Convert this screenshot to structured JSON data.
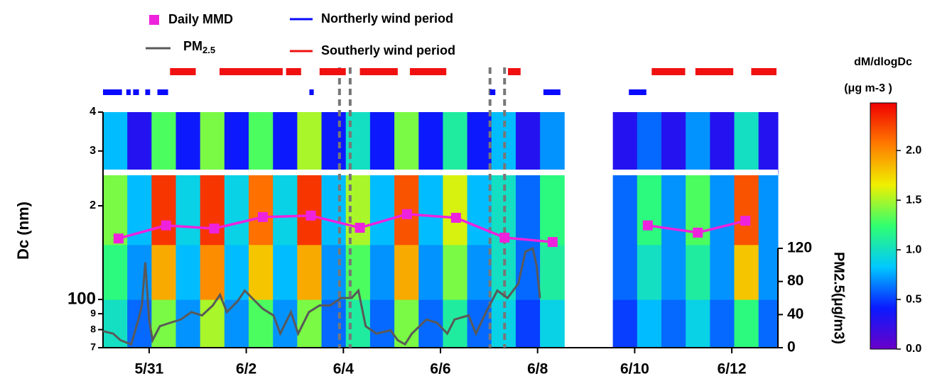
{
  "chart_data": {
    "type": "heatmap",
    "y_label": "Dc (nm)",
    "y2_label": "PM2.5(μg/m3)",
    "colorbar_title": "dM/dlogDc",
    "colorbar_unit": "(μg m-3 )",
    "xlim": [
      0.05,
      13.95
    ],
    "xticks": [
      {
        "value": 1,
        "label": "5/31"
      },
      {
        "value": 3,
        "label": "6/2"
      },
      {
        "value": 5,
        "label": "6/4"
      },
      {
        "value": 7,
        "label": "6/6"
      },
      {
        "value": 9,
        "label": "6/8"
      },
      {
        "value": 11,
        "label": "6/10"
      },
      {
        "value": 13,
        "label": "6/12"
      }
    ],
    "ylim": [
      70,
      400
    ],
    "log_y": true,
    "yticks": [
      {
        "value": 70,
        "label": "7"
      },
      {
        "value": 80,
        "label": "8"
      },
      {
        "value": 90,
        "label": "9"
      },
      100,
      {
        "value": 200,
        "label": "2"
      },
      {
        "value": 300,
        "label": "3"
      },
      {
        "value": 400,
        "label": "4"
      }
    ],
    "y_break": 256,
    "y2lim": [
      0,
      120
    ],
    "y2ticks": [
      0,
      40,
      80,
      120
    ],
    "bins_x": [
      0.05,
      0.55,
      1.05,
      1.55,
      2.05,
      2.55,
      3.05,
      3.55,
      4.05,
      4.55,
      5.05,
      5.55,
      6.05,
      6.55,
      7.05,
      7.55,
      8.05,
      8.55,
      9.05,
      9.55,
      10.05,
      10.55,
      11.05,
      11.55,
      12.05,
      12.55,
      13.05,
      13.55,
      13.95
    ],
    "bins_y": [
      70,
      100,
      150,
      256,
      400
    ],
    "z": [
      [
        1.0,
        0.6,
        1.4,
        0.7,
        1.5,
        0.7,
        1.3,
        0.7,
        1.4,
        0.6,
        1.1,
        0.6,
        1.4,
        0.6,
        1.1,
        0.6,
        0.9,
        0.5,
        0.9,
        null,
        null,
        0.5,
        0.8,
        0.6,
        0.9,
        0.6,
        1.2,
        0.6
      ],
      [
        1.2,
        0.7,
        1.9,
        0.8,
        2.0,
        0.8,
        1.8,
        0.8,
        1.9,
        0.7,
        1.3,
        0.7,
        1.9,
        0.7,
        1.4,
        0.7,
        1.0,
        0.6,
        1.1,
        null,
        null,
        0.6,
        1.0,
        0.7,
        1.1,
        0.7,
        1.8,
        0.7
      ],
      [
        1.4,
        0.8,
        2.3,
        0.9,
        2.3,
        0.9,
        2.1,
        0.9,
        2.3,
        0.8,
        1.5,
        0.8,
        2.2,
        0.8,
        1.6,
        0.8,
        1.0,
        0.6,
        1.2,
        null,
        null,
        0.6,
        1.2,
        0.7,
        1.3,
        0.7,
        2.2,
        0.7
      ],
      [
        0.8,
        0.3,
        1.3,
        0.4,
        1.4,
        0.4,
        1.3,
        0.4,
        1.5,
        0.4,
        1.0,
        0.4,
        1.4,
        0.4,
        1.1,
        0.4,
        0.8,
        0.3,
        0.7,
        null,
        null,
        0.3,
        0.6,
        0.3,
        0.7,
        0.3,
        1.0,
        0.3
      ]
    ],
    "zlim": [
      0,
      2.48
    ],
    "zticks": [
      {
        "value": 0,
        "label": "0.0"
      },
      {
        "value": 0.5,
        "label": "0.5"
      },
      {
        "value": 1,
        "label": "1.0"
      },
      {
        "value": 1.5,
        "label": "1.5"
      },
      {
        "value": 2,
        "label": "2.0"
      }
    ],
    "colormap": [
      "#6a00c8",
      "#0a1aff",
      "#00c8ff",
      "#30ff70",
      "#f0f000",
      "#ff7a00",
      "#f00000"
    ],
    "series": [
      {
        "name": "Daily MMD",
        "color": "#ee22dd",
        "marker": "square",
        "x": [
          0.37,
          1.35,
          2.34,
          3.34,
          4.33,
          5.34,
          6.31,
          7.32,
          8.32,
          9.31,
          11.27,
          12.3,
          13.28
        ],
        "values": [
          157,
          173,
          169,
          184,
          186,
          170,
          188,
          183,
          158,
          153,
          173,
          164,
          179
        ]
      },
      {
        "name": "PM2.5",
        "color": "#595959",
        "axis": "y2",
        "x": [
          0.05,
          0.26,
          0.41,
          0.63,
          0.78,
          0.85,
          0.92,
          1.0,
          1.07,
          1.22,
          1.43,
          1.65,
          1.87,
          2.09,
          2.31,
          2.46,
          2.6,
          2.82,
          2.97,
          3.12,
          3.34,
          3.56,
          3.7,
          3.92,
          4.07,
          4.29,
          4.51,
          4.73,
          4.95,
          5.17,
          5.31,
          5.46,
          5.68,
          5.97,
          6.12,
          6.27,
          6.41,
          6.71,
          6.93,
          7.14,
          7.29,
          7.58,
          7.73,
          7.94,
          8.17,
          8.38,
          8.6,
          8.75,
          8.9,
          8.98,
          9.05
        ],
        "values": [
          20,
          17,
          9,
          4,
          34,
          51,
          103,
          34,
          9,
          26,
          30,
          34,
          43,
          39,
          51,
          64,
          43,
          56,
          69,
          60,
          47,
          39,
          17,
          43,
          17,
          43,
          51,
          51,
          60,
          60,
          69,
          26,
          17,
          21,
          9,
          4,
          17,
          34,
          30,
          17,
          34,
          39,
          17,
          43,
          69,
          60,
          77,
          116,
          120,
          99,
          60
        ]
      }
    ],
    "periods": [
      {
        "name": "Northerly wind period",
        "color": "#0a0aff",
        "spans": [
          [
            0.05,
            0.44
          ],
          [
            0.53,
            0.62
          ],
          [
            0.67,
            0.79
          ],
          [
            0.92,
            1.02
          ],
          [
            1.17,
            1.39
          ],
          [
            4.3,
            4.39
          ],
          [
            8.02,
            8.13
          ],
          [
            9.12,
            9.47
          ],
          [
            10.88,
            11.24
          ]
        ]
      },
      {
        "name": "Southerly wind period",
        "color": "#f01010",
        "spans": [
          [
            1.43,
            1.96
          ],
          [
            2.45,
            3.75
          ],
          [
            3.82,
            4.13
          ],
          [
            4.51,
            5.05
          ],
          [
            5.34,
            6.12
          ],
          [
            6.37,
            7.12
          ],
          [
            8.39,
            8.65
          ],
          [
            11.35,
            12.04
          ],
          [
            12.25,
            13.03
          ],
          [
            13.4,
            13.92
          ]
        ]
      }
    ],
    "dashed_lines": [
      4.92,
      5.14,
      8.02,
      8.32
    ]
  }
}
